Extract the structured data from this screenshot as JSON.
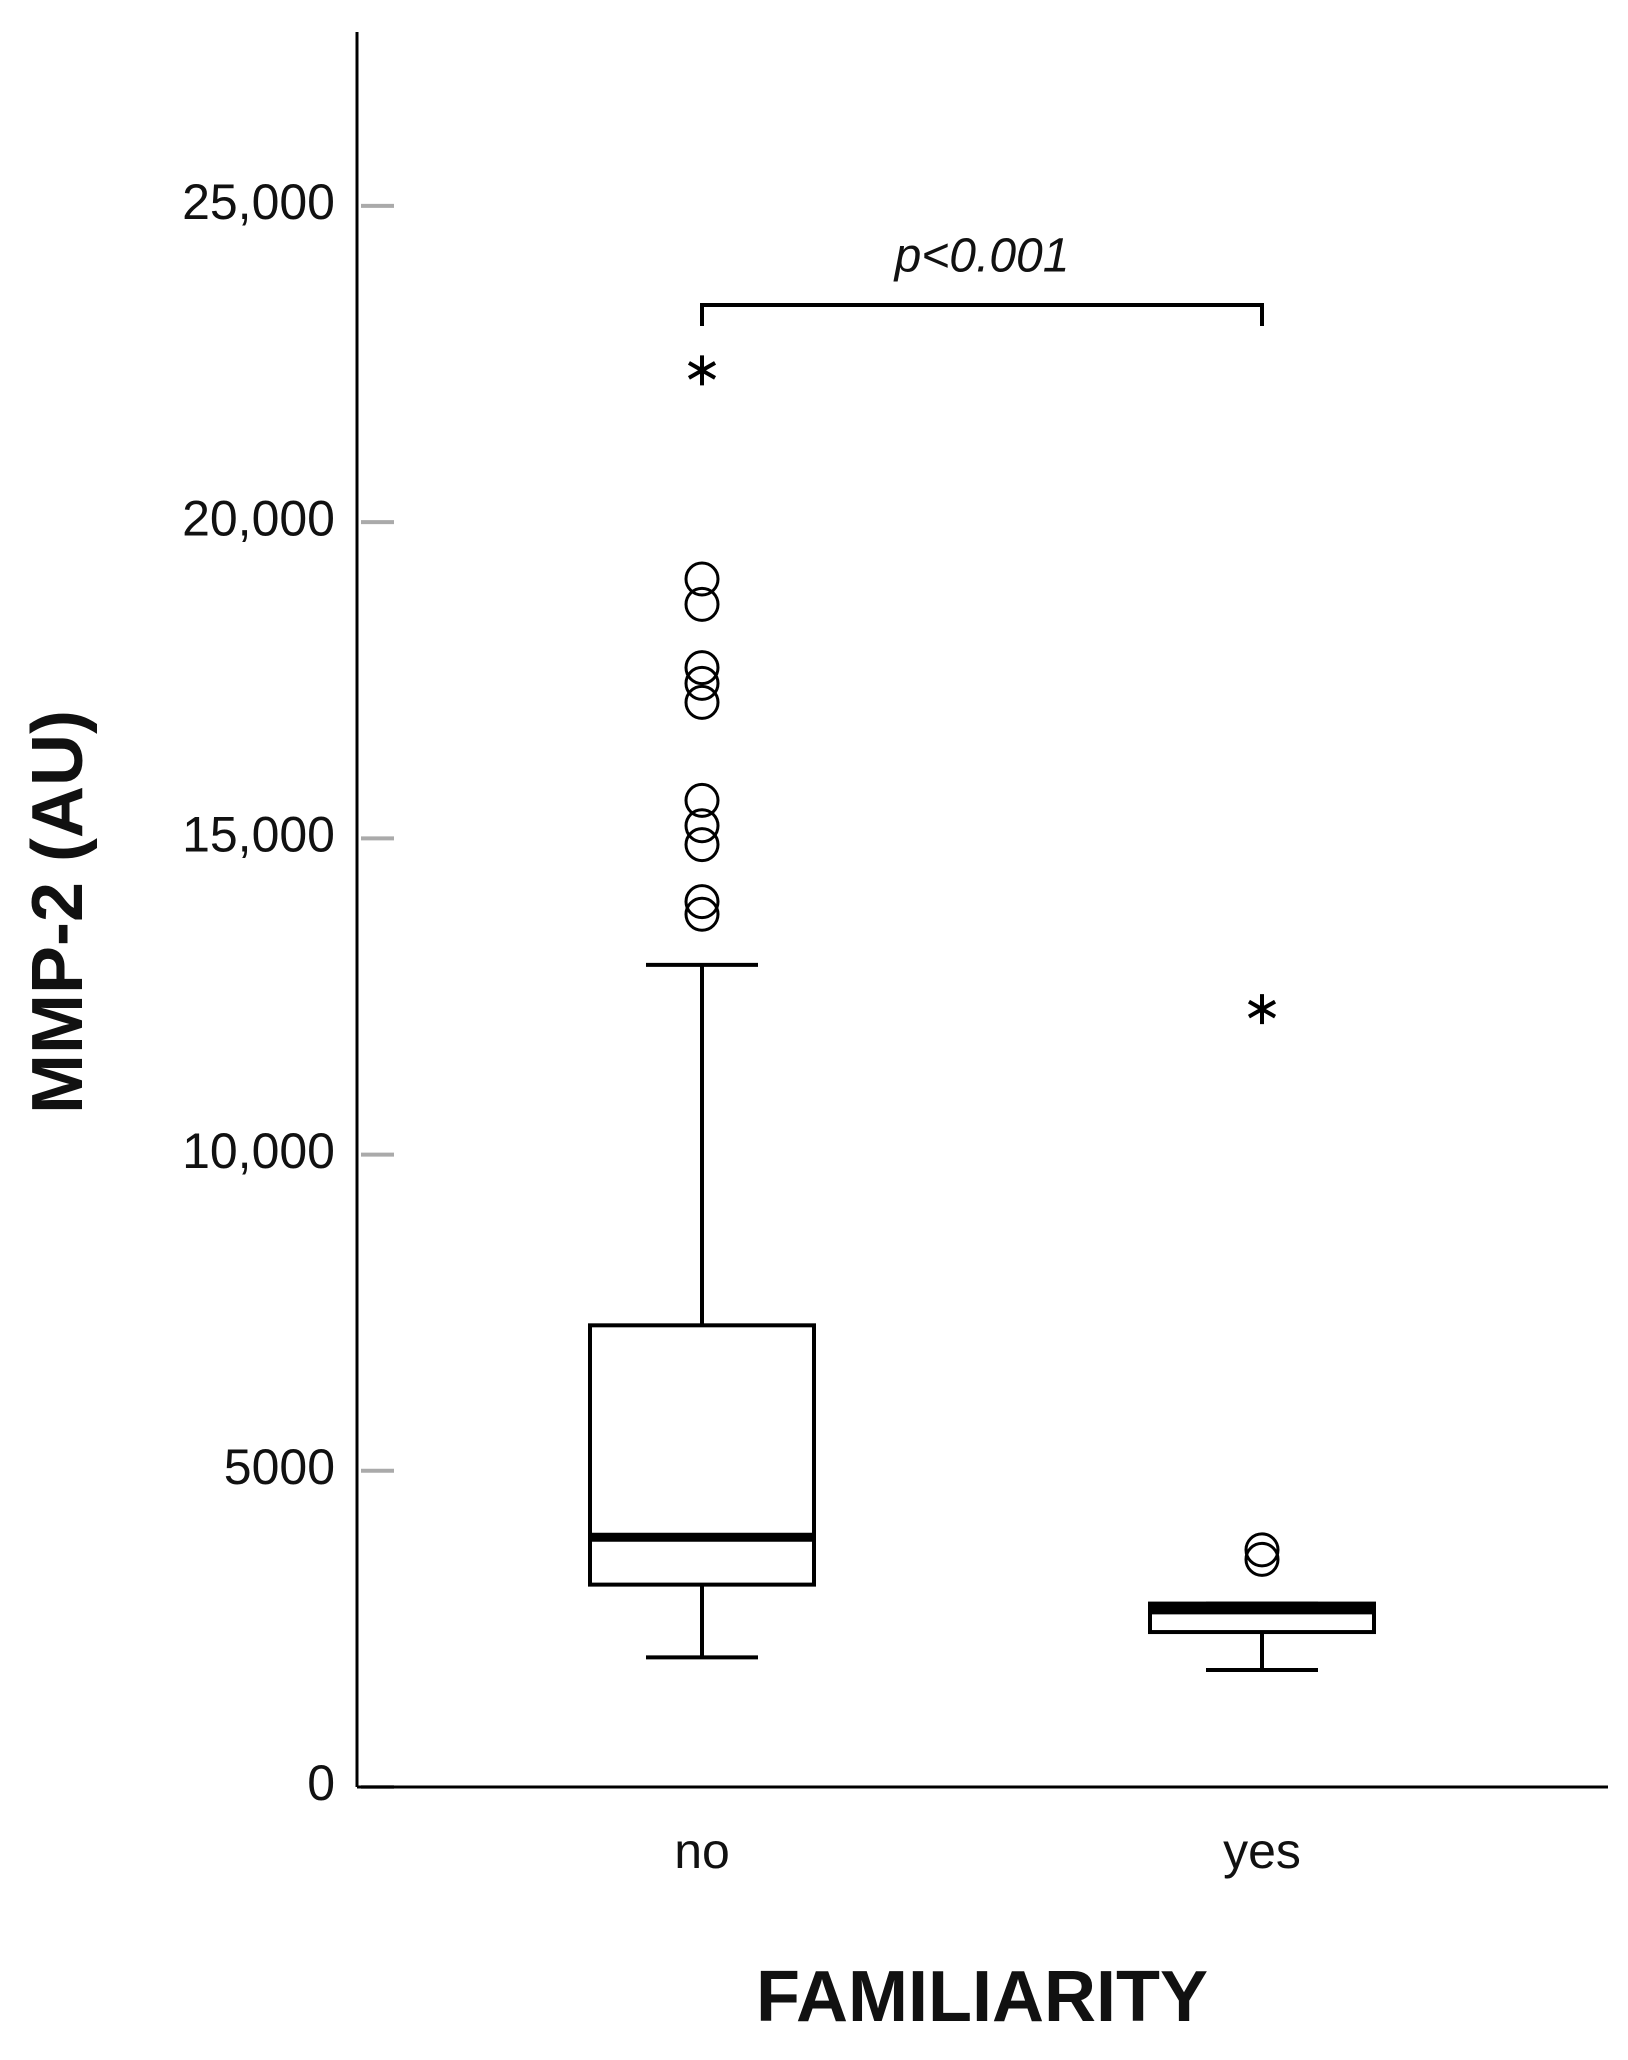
{
  "chart_data": {
    "type": "box",
    "ylabel": "MMP-2 (AU)",
    "xlabel": "FAMILIARITY",
    "annotation": "p<0.001",
    "categories": [
      "no",
      "yes"
    ],
    "boxes": [
      {
        "whislo": 2050,
        "q1": 3200,
        "med": 3950,
        "q3": 7300,
        "whishi": 13000,
        "outliers": [
          19100,
          18700,
          17700,
          17450,
          17150,
          15600,
          15200,
          14900,
          14000,
          13800
        ],
        "extremes": [
          22400
        ]
      },
      {
        "whislo": 1850,
        "q1": 2450,
        "med": 2800,
        "q3": 2900,
        "whishi": 2900,
        "outliers": [
          3750,
          3600
        ],
        "extremes": [
          12300
        ]
      }
    ],
    "color": "#000000",
    "ylim": [
      0,
      27750
    ],
    "yticks": [
      0,
      5000,
      {
        "value": 10000,
        "label": "10,000"
      },
      {
        "value": 15000,
        "label": "15,000"
      },
      {
        "value": 20000,
        "label": "20,000"
      },
      {
        "value": 25000,
        "label": "25,000"
      }
    ]
  }
}
